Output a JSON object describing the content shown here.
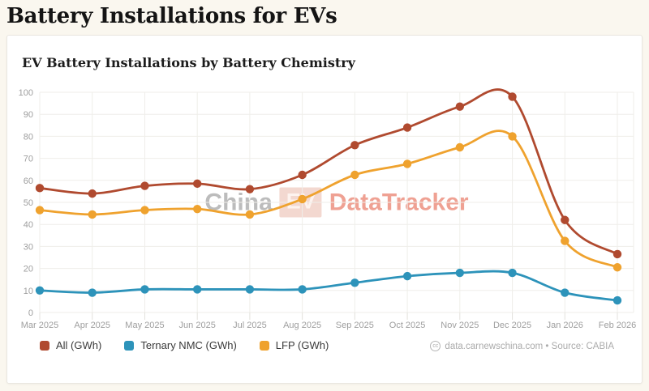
{
  "page": {
    "title": "Battery Installations for EVs",
    "background_color": "#faf7ef"
  },
  "chart": {
    "subtitle": "EV Battery Installations by Battery Chemistry",
    "watermark": {
      "part1": "China",
      "part2": "EV",
      "part3": "DataTracker"
    },
    "attribution": {
      "icon_label": "cc",
      "text": "data.carnewschina.com • Source: CABIA"
    }
  },
  "chart_data": {
    "type": "line",
    "title": "EV Battery Installations by Battery Chemistry",
    "categories": [
      "Mar 2025",
      "Apr 2025",
      "May 2025",
      "Jun 2025",
      "Jul 2025",
      "Aug 2025",
      "Sep 2025",
      "Oct 2025",
      "Nov 2025",
      "Dec 2025",
      "Jan 2026",
      "Feb 2026"
    ],
    "series": [
      {
        "name": "All (GWh)",
        "color": "#b04a2f",
        "values": [
          56.5,
          54,
          57.5,
          58.5,
          56,
          62.5,
          76,
          84,
          93.5,
          98,
          42,
          26.5
        ]
      },
      {
        "name": "Ternary NMC (GWh)",
        "color": "#2d93ba",
        "values": [
          10,
          9,
          10.5,
          10.5,
          10.5,
          10.5,
          13.5,
          16.5,
          18,
          18,
          9,
          5.5
        ]
      },
      {
        "name": "LFP (GWh)",
        "color": "#efa22e",
        "values": [
          46.5,
          44.5,
          46.5,
          47,
          44.5,
          51.5,
          62.5,
          67.5,
          75,
          80,
          32.5,
          20.5
        ]
      }
    ],
    "xlabel": "",
    "ylabel": "",
    "ylim": [
      0,
      100
    ],
    "ytick_step": 10,
    "grid": true,
    "legend_position": "bottom-left",
    "axis_text_color": "#9e9e9e",
    "grid_color": "#efeeea"
  }
}
